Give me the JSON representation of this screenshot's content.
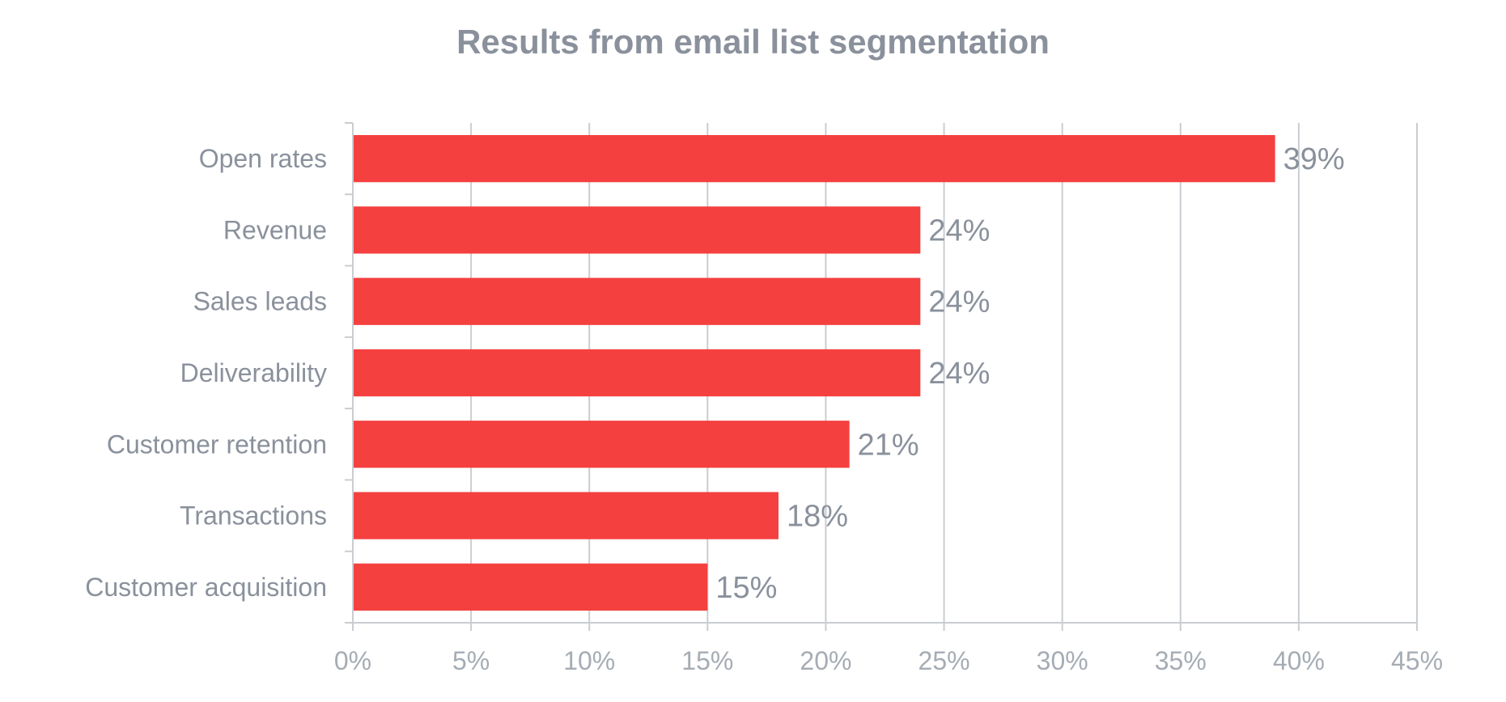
{
  "chart_data": {
    "type": "bar",
    "orientation": "horizontal",
    "title": "Results from email list segmentation",
    "xlabel": "",
    "ylabel": "",
    "categories": [
      "Open rates",
      "Revenue",
      "Sales leads",
      "Deliverability",
      "Customer retention",
      "Transactions",
      "Customer acquisition"
    ],
    "values": [
      39,
      24,
      24,
      24,
      21,
      18,
      15
    ],
    "value_labels": [
      "39%",
      "24%",
      "24%",
      "24%",
      "21%",
      "18%",
      "15%"
    ],
    "xlim": [
      0,
      45
    ],
    "x_ticks": [
      0,
      5,
      10,
      15,
      20,
      25,
      30,
      35,
      40,
      45
    ],
    "x_tick_labels": [
      "0%",
      "5%",
      "10%",
      "15%",
      "20%",
      "25%",
      "30%",
      "35%",
      "40%",
      "45%"
    ],
    "grid": "vertical",
    "legend": "none",
    "bar_color": "#f4403f",
    "grid_color": "#c9cdd2",
    "text_color": "#8a919c"
  }
}
